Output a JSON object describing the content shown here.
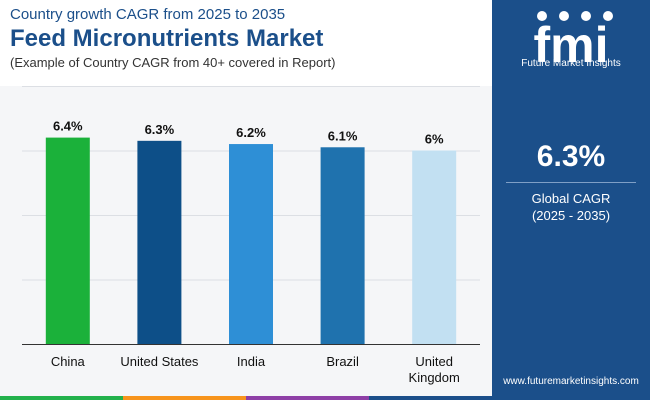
{
  "header": {
    "subtitle_top": "Country growth CAGR from 2025 to 2035",
    "title": "Feed Micronutrients Market",
    "subtitle_bottom": "(Example of Country CAGR from 40+ covered in Report)"
  },
  "sidebar": {
    "logo_letters": "fmi",
    "logo_text": "Future Market Insights",
    "cagr_value": "6.3%",
    "cagr_label": "Global CAGR",
    "cagr_period": "(2025 - 2035)",
    "website": "www.futuremarketinsights.com"
  },
  "colors": {
    "brand": "#1b4f8a",
    "bottom_bar": [
      "#22b14c",
      "#f7941d",
      "#8e3fa6",
      "#1b4f8a"
    ]
  },
  "chart_data": {
    "type": "bar",
    "categories": [
      "China",
      "United States",
      "India",
      "Brazil",
      "United Kingdom"
    ],
    "category_lines": [
      [
        "China"
      ],
      [
        "United States"
      ],
      [
        "India"
      ],
      [
        "Brazil"
      ],
      [
        "United",
        "Kingdom"
      ]
    ],
    "values": [
      6.4,
      6.3,
      6.2,
      6.1,
      6.0
    ],
    "value_labels": [
      "6.4%",
      "6.3%",
      "6.2%",
      "6.1%",
      "6%"
    ],
    "colors": [
      "#1bb13a",
      "#0d4f88",
      "#2e8fd6",
      "#1f72ae",
      "#c2e0f2"
    ],
    "title": "",
    "xlabel": "",
    "ylabel": "",
    "ylim": [
      0,
      8
    ],
    "grid": true
  }
}
